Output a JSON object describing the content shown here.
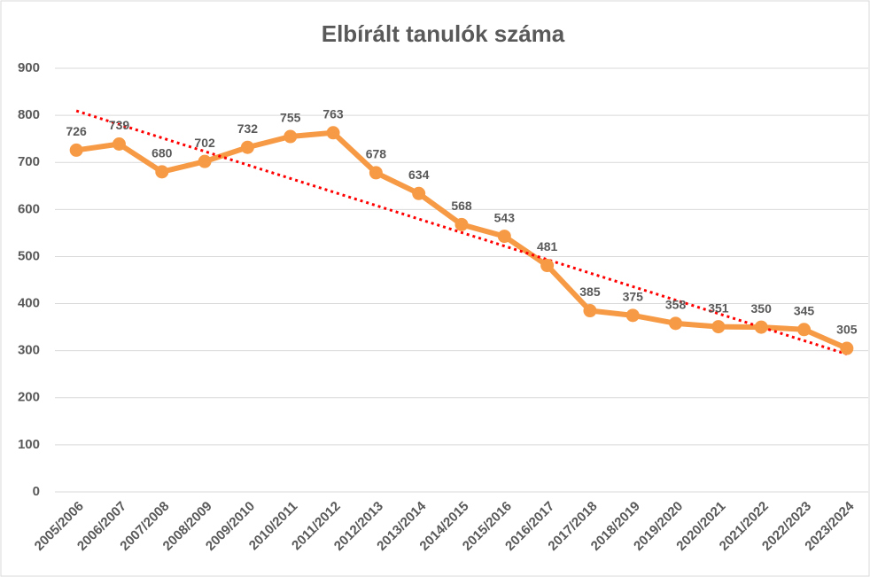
{
  "chart_data": {
    "type": "line",
    "title": "Elbírált tanulók száma",
    "categories": [
      "2005/2006",
      "2006/2007",
      "2007/2008",
      "2008/2009",
      "2009/2010",
      "2010/2011",
      "2011/2012",
      "2012/2013",
      "2013/2014",
      "2014/2015",
      "2015/2016",
      "2016/2017",
      "2017/2018",
      "2018/2019",
      "2019/2020",
      "2020/2021",
      "2021/2022",
      "2022/2023",
      "2023/2024"
    ],
    "series": [
      {
        "color": "#f79a45",
        "values": [
          726,
          739,
          680,
          702,
          732,
          755,
          763,
          678,
          634,
          568,
          543,
          481,
          385,
          375,
          358,
          351,
          350,
          345,
          305
        ]
      }
    ],
    "trendline": {
      "type": "linear",
      "color": "#ff0000"
    },
    "ylim": [
      0,
      900
    ],
    "yticks": [
      0,
      100,
      200,
      300,
      400,
      500,
      600,
      700,
      800,
      900
    ],
    "grid": true,
    "data_labels": true
  }
}
